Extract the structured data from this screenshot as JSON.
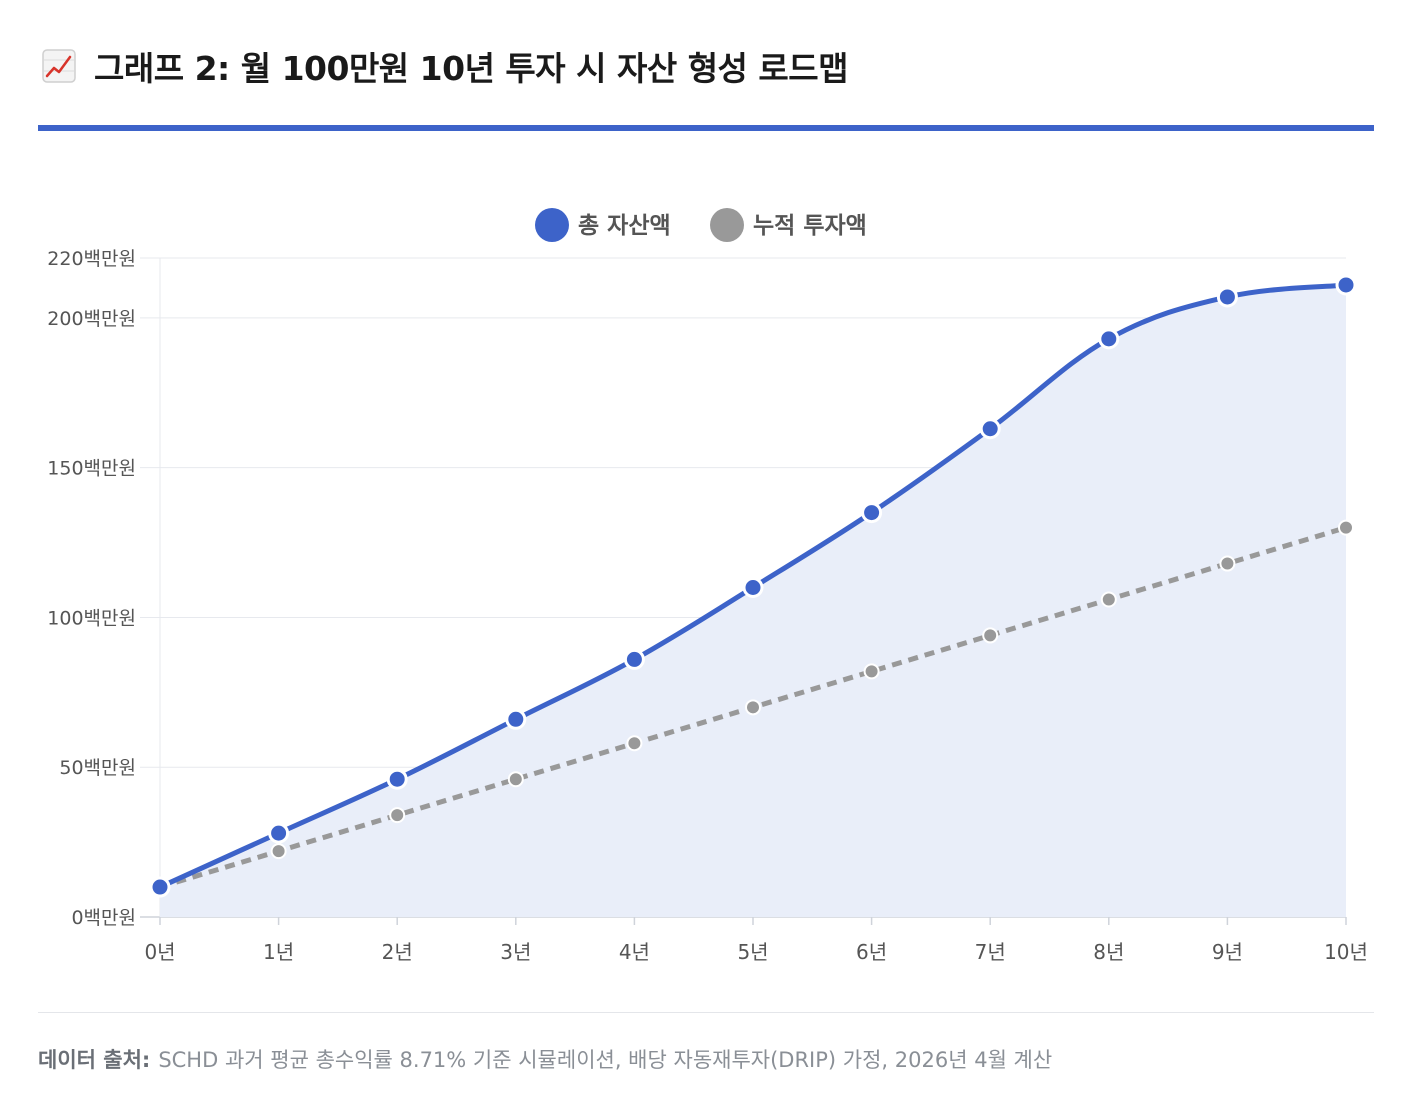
{
  "title": {
    "icon": "chart-increasing-icon",
    "text": "그래프 2: 월 100만원 10년 투자 시 자산 형성 로드맵"
  },
  "chart_data": {
    "type": "line",
    "categories": [
      "0년",
      "1년",
      "2년",
      "3년",
      "4년",
      "5년",
      "6년",
      "7년",
      "8년",
      "9년",
      "10년"
    ],
    "y_ticks": [
      0,
      50,
      100,
      150,
      200,
      220
    ],
    "y_tick_suffix": "백만원",
    "ylim": [
      0,
      220
    ],
    "legend_position": "top-center",
    "grid": true,
    "series": [
      {
        "name": "총 자산액",
        "color": "#3d63c9",
        "style": "solid",
        "fill": "#e9eef9",
        "values": [
          10,
          28,
          46,
          66,
          86,
          110,
          135,
          163,
          193,
          207,
          211
        ]
      },
      {
        "name": "누적 투자액",
        "color": "#999999",
        "style": "dashed",
        "values": [
          10,
          22,
          34,
          46,
          58,
          70,
          82,
          94,
          106,
          118,
          130
        ]
      }
    ]
  },
  "footer": {
    "label": "데이터 출처:",
    "text": "SCHD 과거 평균 총수익률 8.71% 기준 시뮬레이션, 배당 자동재투자(DRIP) 가정, 2026년 4월 계산"
  }
}
